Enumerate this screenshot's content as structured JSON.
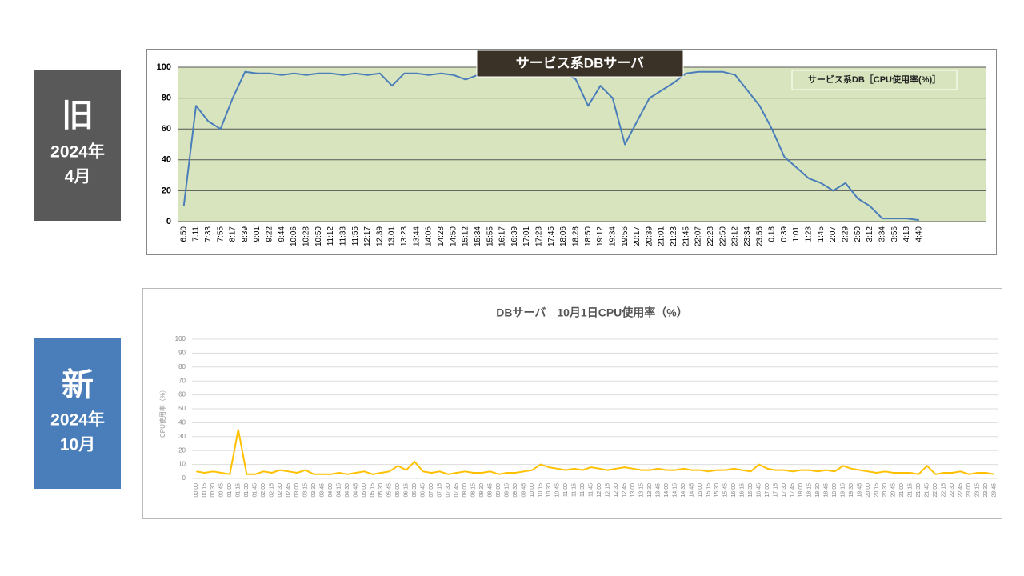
{
  "labels": [
    {
      "big": "旧",
      "year": "2024年",
      "month": "4月"
    },
    {
      "big": "新",
      "year": "2024年",
      "month": "10月"
    }
  ],
  "chart_data": [
    {
      "type": "line",
      "title": "サービス系DBサーバ",
      "plot_background": "#d7e4bd",
      "legend": "top-right",
      "grid": true,
      "categories": [
        "6:50",
        "7:11",
        "7:33",
        "7:55",
        "8:17",
        "8:39",
        "9:01",
        "9:22",
        "9:44",
        "10:06",
        "10:28",
        "10:50",
        "11:12",
        "11:33",
        "11:55",
        "12:17",
        "12:39",
        "13:01",
        "13:23",
        "13:44",
        "14:06",
        "14:28",
        "14:50",
        "15:12",
        "15:34",
        "15:55",
        "16:17",
        "16:39",
        "17:01",
        "17:23",
        "17:45",
        "18:06",
        "18:28",
        "18:50",
        "19:12",
        "19:34",
        "19:56",
        "20:17",
        "20:39",
        "21:01",
        "21:23",
        "21:45",
        "22:07",
        "22:28",
        "22:50",
        "23:12",
        "23:34",
        "23:56",
        "0:18",
        "0:39",
        "1:01",
        "1:23",
        "1:45",
        "2:07",
        "2:29",
        "2:50",
        "3:12",
        "3:34",
        "3:56",
        "4:18",
        "4:40",
        null,
        null,
        null,
        null,
        null
      ],
      "series": [
        {
          "name": "サービス系DB［CPU使用率(%)］",
          "color": "#4a7ebb",
          "values": [
            10,
            75,
            65,
            60,
            80,
            97,
            96,
            96,
            95,
            96,
            95,
            96,
            96,
            95,
            96,
            95,
            96,
            88,
            96,
            96,
            95,
            96,
            95,
            92,
            95,
            97,
            98,
            98,
            98,
            98,
            98,
            97,
            92,
            75,
            88,
            80,
            50,
            65,
            80,
            85,
            90,
            96,
            97,
            97,
            97,
            95,
            85,
            75,
            60,
            42,
            35,
            28,
            25,
            20,
            25,
            15,
            10,
            2,
            2,
            2,
            1,
            null,
            null,
            null,
            null,
            null
          ]
        }
      ],
      "ylim": [
        0,
        100
      ],
      "yticks": [
        0,
        20,
        40,
        60,
        80,
        100
      ]
    },
    {
      "type": "line",
      "title": "DBサーバ　10月1日CPU使用率（%）",
      "y_label": "CPU使用率（%）",
      "grid": true,
      "categories": [
        "00:00",
        "00:15",
        "00:30",
        "00:45",
        "01:00",
        "01:15",
        "01:30",
        "01:45",
        "02:00",
        "02:15",
        "02:30",
        "02:45",
        "03:00",
        "03:15",
        "03:30",
        "03:45",
        "04:00",
        "04:15",
        "04:30",
        "04:45",
        "05:00",
        "05:15",
        "05:30",
        "05:45",
        "06:00",
        "06:15",
        "06:30",
        "06:45",
        "07:00",
        "07:15",
        "07:30",
        "07:45",
        "08:00",
        "08:15",
        "08:30",
        "08:45",
        "09:00",
        "09:15",
        "09:30",
        "09:45",
        "10:00",
        "10:15",
        "10:30",
        "10:45",
        "11:00",
        "11:15",
        "11:30",
        "11:45",
        "12:00",
        "12:15",
        "12:30",
        "12:45",
        "13:00",
        "13:15",
        "13:30",
        "13:45",
        "14:00",
        "14:15",
        "14:30",
        "14:45",
        "15:00",
        "15:15",
        "15:30",
        "15:45",
        "16:00",
        "16:15",
        "16:30",
        "16:45",
        "17:00",
        "17:15",
        "17:30",
        "17:45",
        "18:00",
        "18:15",
        "18:30",
        "18:45",
        "19:00",
        "19:15",
        "19:30",
        "19:45",
        "20:00",
        "20:15",
        "20:30",
        "20:45",
        "21:00",
        "21:15",
        "21:30",
        "21:45",
        "22:00",
        "22:15",
        "22:30",
        "22:45",
        "23:00",
        "23:15",
        "23:30",
        "23:45"
      ],
      "series": [
        {
          "color": "#ffc000",
          "values": [
            5,
            4,
            5,
            4,
            3,
            35,
            3,
            3,
            5,
            4,
            6,
            5,
            4,
            6,
            3,
            3,
            3,
            4,
            3,
            4,
            5,
            3,
            4,
            5,
            9,
            6,
            12,
            5,
            4,
            5,
            3,
            4,
            5,
            4,
            4,
            5,
            3,
            4,
            4,
            5,
            6,
            10,
            8,
            7,
            6,
            7,
            6,
            8,
            7,
            6,
            7,
            8,
            7,
            6,
            6,
            7,
            6,
            6,
            7,
            6,
            6,
            5,
            6,
            6,
            7,
            6,
            5,
            10,
            7,
            6,
            6,
            5,
            6,
            6,
            5,
            6,
            5,
            9,
            7,
            6,
            5,
            4,
            5,
            4,
            4,
            4,
            3,
            9,
            3,
            4,
            4,
            5,
            3,
            4,
            4,
            3
          ]
        }
      ],
      "ylim": [
        0,
        100
      ],
      "yticks": [
        0,
        10,
        20,
        30,
        40,
        50,
        60,
        70,
        80,
        90,
        100
      ]
    }
  ]
}
